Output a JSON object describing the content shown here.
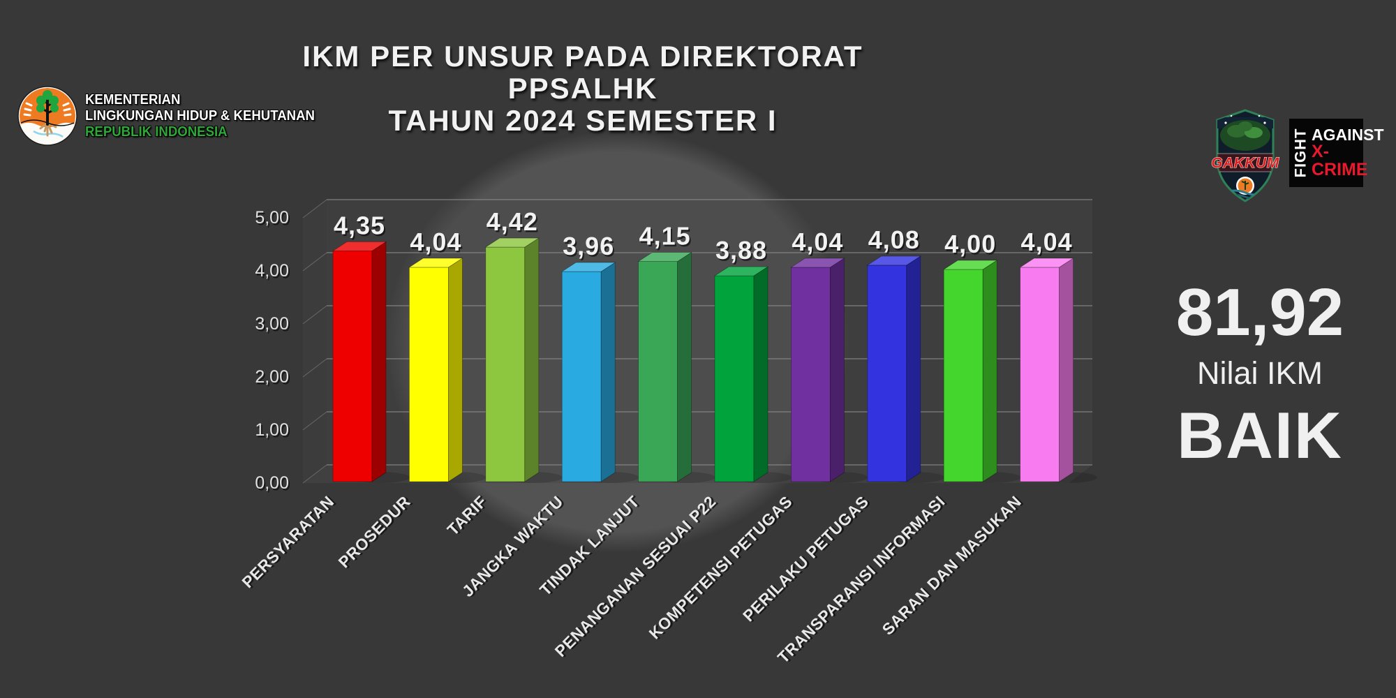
{
  "page": {
    "background": "#383838"
  },
  "header": {
    "title_lines": [
      "IKM PER UNSUR PADA DIREKTORAT",
      "PPSALHK",
      "TAHUN 2024 SEMESTER I"
    ]
  },
  "ministry_logo": {
    "lines": [
      "KEMENTERIAN",
      "LINGKUNGAN HIDUP & KEHUTANAN",
      "REPUBLIK INDONESIA"
    ],
    "line3_color": "#2ea836"
  },
  "gakkum_logo": {
    "label": "GAKKUM"
  },
  "xcrime_logo": {
    "fight": "FIGHT",
    "against": "AGAINST",
    "xcrime": "X-CRIME",
    "accent": "#e8192c"
  },
  "summary": {
    "score": "81,92",
    "caption": "Nilai IKM",
    "rating": "BAIK"
  },
  "chart_data": {
    "type": "bar",
    "style": "3d-column",
    "title": "IKM PER UNSUR PADA DIREKTORAT PPSALHK TAHUN 2024 SEMESTER I",
    "categories": [
      "PERSYARATAN",
      "PROSEDUR",
      "TARIF",
      "JANGKA WAKTU",
      "TINDAK LANJUT",
      "PENANGANAN SESUAI P22",
      "KOMPETENSI PETUGAS",
      "PERILAKU PETUGAS",
      "TRANSPARANSI INFORMASI",
      "SARAN DAN MASUKAN"
    ],
    "values": [
      4.35,
      4.04,
      4.42,
      3.96,
      4.15,
      3.88,
      4.04,
      4.08,
      4.0,
      4.04
    ],
    "value_labels": [
      "4,35",
      "4,04",
      "4,42",
      "3,96",
      "4,15",
      "3,88",
      "4,04",
      "4,08",
      "4,00",
      "4,04"
    ],
    "colors": [
      "#ee0000",
      "#ffff00",
      "#8dc63f",
      "#29abe2",
      "#3aa757",
      "#00a33c",
      "#7030a0",
      "#3333e0",
      "#44d62c",
      "#f97bf0"
    ],
    "y_ticks": [
      "0,00",
      "1,00",
      "2,00",
      "3,00",
      "4,00",
      "5,00"
    ],
    "ylim": [
      0,
      5
    ],
    "grid": true,
    "legend": "none"
  }
}
